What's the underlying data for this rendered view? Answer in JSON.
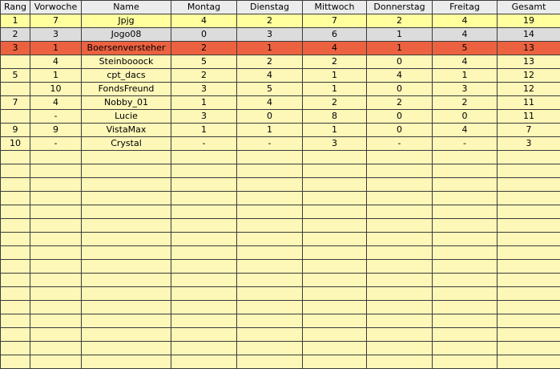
{
  "table": {
    "header": [
      "Rang",
      "Vorwoche",
      "Name",
      "Montag",
      "Dienstag",
      "Mittwoch",
      "Donnerstag",
      "Freitag",
      "Gesamt"
    ],
    "rows": [
      [
        "1",
        "7",
        "Jpjg",
        "4",
        "2",
        "7",
        "2",
        "4",
        "19"
      ],
      [
        "2",
        "3",
        "Jogo08",
        "0",
        "3",
        "6",
        "1",
        "4",
        "14"
      ],
      [
        "3",
        "1",
        "Boersenversteher",
        "2",
        "1",
        "4",
        "1",
        "5",
        "13"
      ],
      [
        null,
        "4",
        "Steinbooock",
        "5",
        "2",
        "2",
        "0",
        "4",
        "13"
      ],
      [
        "5",
        "1",
        "cpt_dacs",
        "2",
        "4",
        "1",
        "4",
        "1",
        "12"
      ],
      [
        null,
        "10",
        "FondsFreund",
        "3",
        "5",
        "1",
        "0",
        "3",
        "12"
      ],
      [
        "7",
        "4",
        "Nobby_01",
        "1",
        "4",
        "2",
        "2",
        "2",
        "11"
      ],
      [
        null,
        "-",
        "Lucie",
        "3",
        "0",
        "8",
        "0",
        "0",
        "11"
      ],
      [
        "9",
        "9",
        "VistaMax",
        "1",
        "1",
        "1",
        "0",
        "4",
        "7"
      ],
      [
        "10",
        "-",
        "Crystal",
        "-",
        "-",
        "3",
        "-",
        "-",
        "3"
      ]
    ]
  }
}
